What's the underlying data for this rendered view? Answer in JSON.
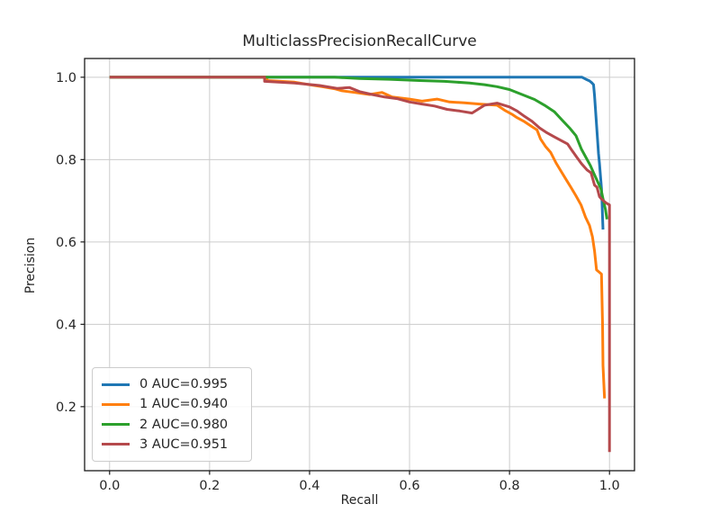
{
  "chart_data": {
    "type": "line",
    "title": "MulticlassPrecisionRecallCurve",
    "xlabel": "Recall",
    "ylabel": "Precision",
    "xlim": [
      -0.05,
      1.05
    ],
    "ylim": [
      0.0445,
      1.0455
    ],
    "xticks": [
      0.0,
      0.2,
      0.4,
      0.6,
      0.8,
      1.0
    ],
    "yticks": [
      0.2,
      0.4,
      0.6,
      0.8,
      1.0
    ],
    "grid": true,
    "grid_color": "#cccccc",
    "spine_color": "#1a1a1a",
    "text_color": "#262626",
    "legend_position": "lower-left",
    "series": [
      {
        "name": "class-0",
        "label": "0 AUC=0.995",
        "auc": 0.995,
        "color": "#1f77b4",
        "points": [
          [
            0,
            1.0
          ],
          [
            0.945,
            1.0
          ],
          [
            0.953,
            0.995
          ],
          [
            0.96,
            0.991
          ],
          [
            0.965,
            0.986
          ],
          [
            0.968,
            0.982
          ],
          [
            0.97,
            0.955
          ],
          [
            0.972,
            0.92
          ],
          [
            0.974,
            0.885
          ],
          [
            0.976,
            0.85
          ],
          [
            0.978,
            0.815
          ],
          [
            0.98,
            0.79
          ],
          [
            0.982,
            0.76
          ],
          [
            0.984,
            0.73
          ],
          [
            0.985,
            0.7
          ],
          [
            0.986,
            0.66
          ],
          [
            0.987,
            0.63
          ]
        ]
      },
      {
        "name": "class-1",
        "label": "1 AUC=0.940",
        "auc": 0.94,
        "color": "#ff7f0e",
        "points": [
          [
            0,
            1.0
          ],
          [
            0.315,
            1.0
          ],
          [
            0.315,
            0.992
          ],
          [
            0.37,
            0.988
          ],
          [
            0.4,
            0.982
          ],
          [
            0.425,
            0.977
          ],
          [
            0.45,
            0.972
          ],
          [
            0.465,
            0.967
          ],
          [
            0.49,
            0.963
          ],
          [
            0.52,
            0.958
          ],
          [
            0.545,
            0.963
          ],
          [
            0.565,
            0.952
          ],
          [
            0.6,
            0.947
          ],
          [
            0.625,
            0.942
          ],
          [
            0.655,
            0.947
          ],
          [
            0.68,
            0.94
          ],
          [
            0.71,
            0.938
          ],
          [
            0.74,
            0.935
          ],
          [
            0.775,
            0.932
          ],
          [
            0.79,
            0.92
          ],
          [
            0.805,
            0.91
          ],
          [
            0.815,
            0.902
          ],
          [
            0.83,
            0.892
          ],
          [
            0.845,
            0.88
          ],
          [
            0.855,
            0.872
          ],
          [
            0.862,
            0.85
          ],
          [
            0.872,
            0.832
          ],
          [
            0.882,
            0.818
          ],
          [
            0.893,
            0.792
          ],
          [
            0.903,
            0.772
          ],
          [
            0.913,
            0.752
          ],
          [
            0.923,
            0.732
          ],
          [
            0.933,
            0.712
          ],
          [
            0.943,
            0.69
          ],
          [
            0.952,
            0.66
          ],
          [
            0.96,
            0.64
          ],
          [
            0.966,
            0.612
          ],
          [
            0.97,
            0.578
          ],
          [
            0.974,
            0.532
          ],
          [
            0.984,
            0.522
          ],
          [
            0.986,
            0.4
          ],
          [
            0.987,
            0.3
          ],
          [
            0.99,
            0.22
          ]
        ]
      },
      {
        "name": "class-2",
        "label": "2 AUC=0.980",
        "auc": 0.98,
        "color": "#2ca02c",
        "points": [
          [
            0,
            1.0
          ],
          [
            0.45,
            1.0
          ],
          [
            0.5,
            0.997
          ],
          [
            0.56,
            0.995
          ],
          [
            0.62,
            0.992
          ],
          [
            0.67,
            0.99
          ],
          [
            0.72,
            0.986
          ],
          [
            0.75,
            0.982
          ],
          [
            0.775,
            0.977
          ],
          [
            0.8,
            0.97
          ],
          [
            0.825,
            0.958
          ],
          [
            0.85,
            0.946
          ],
          [
            0.87,
            0.932
          ],
          [
            0.89,
            0.916
          ],
          [
            0.905,
            0.896
          ],
          [
            0.92,
            0.877
          ],
          [
            0.933,
            0.858
          ],
          [
            0.944,
            0.825
          ],
          [
            0.953,
            0.805
          ],
          [
            0.962,
            0.785
          ],
          [
            0.968,
            0.768
          ],
          [
            0.973,
            0.755
          ],
          [
            0.978,
            0.742
          ],
          [
            0.983,
            0.728
          ],
          [
            0.987,
            0.705
          ],
          [
            0.992,
            0.678
          ],
          [
            0.995,
            0.655
          ]
        ]
      },
      {
        "name": "class-3",
        "label": "3 AUC=0.951",
        "auc": 0.951,
        "color": "#b5494c",
        "points": [
          [
            0,
            1.0
          ],
          [
            0.31,
            1.0
          ],
          [
            0.31,
            0.99
          ],
          [
            0.37,
            0.986
          ],
          [
            0.42,
            0.98
          ],
          [
            0.455,
            0.973
          ],
          [
            0.48,
            0.975
          ],
          [
            0.5,
            0.965
          ],
          [
            0.525,
            0.958
          ],
          [
            0.55,
            0.952
          ],
          [
            0.575,
            0.948
          ],
          [
            0.6,
            0.94
          ],
          [
            0.625,
            0.935
          ],
          [
            0.65,
            0.93
          ],
          [
            0.675,
            0.922
          ],
          [
            0.7,
            0.918
          ],
          [
            0.725,
            0.913
          ],
          [
            0.75,
            0.932
          ],
          [
            0.775,
            0.937
          ],
          [
            0.8,
            0.928
          ],
          [
            0.815,
            0.918
          ],
          [
            0.83,
            0.905
          ],
          [
            0.845,
            0.893
          ],
          [
            0.86,
            0.877
          ],
          [
            0.875,
            0.865
          ],
          [
            0.89,
            0.855
          ],
          [
            0.905,
            0.845
          ],
          [
            0.916,
            0.838
          ],
          [
            0.925,
            0.822
          ],
          [
            0.935,
            0.805
          ],
          [
            0.944,
            0.79
          ],
          [
            0.955,
            0.775
          ],
          [
            0.963,
            0.768
          ],
          [
            0.97,
            0.738
          ],
          [
            0.975,
            0.733
          ],
          [
            0.98,
            0.71
          ],
          [
            0.985,
            0.703
          ],
          [
            0.993,
            0.695
          ],
          [
            1.0,
            0.69
          ],
          [
            1.0,
            0.09
          ]
        ]
      }
    ]
  }
}
